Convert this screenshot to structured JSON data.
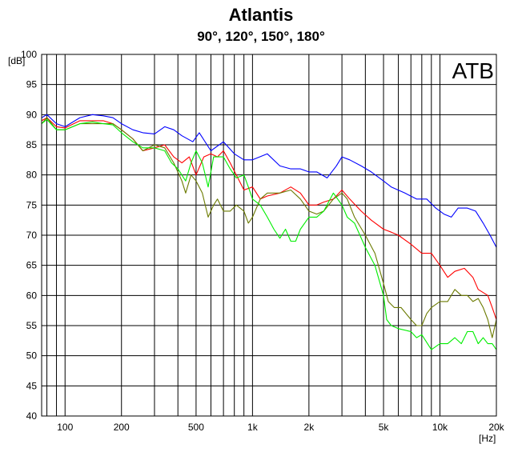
{
  "chart_data": {
    "type": "line",
    "title": "Atlantis",
    "subtitle": "90°, 120°, 150°, 180°",
    "ylabel": "[dB]",
    "xlabel": "[Hz]",
    "annotation": "ATB",
    "xscale": "log",
    "grid": true,
    "xlim": [
      75,
      20000
    ],
    "ylim": [
      40,
      100
    ],
    "x_tick_labels": [
      {
        "value": 100,
        "label": "100"
      },
      {
        "value": 200,
        "label": "200"
      },
      {
        "value": 500,
        "label": "500"
      },
      {
        "value": 1000,
        "label": "1k"
      },
      {
        "value": 2000,
        "label": "2k"
      },
      {
        "value": 5000,
        "label": "5k"
      },
      {
        "value": 10000,
        "label": "10k"
      },
      {
        "value": 20000,
        "label": "20k"
      }
    ],
    "y_ticks": [
      40,
      45,
      50,
      55,
      60,
      65,
      70,
      75,
      80,
      85,
      90,
      95,
      100
    ],
    "series": [
      {
        "color": "#0000ff",
        "points": [
          [
            75,
            89.5
          ],
          [
            80,
            90
          ],
          [
            90,
            88.5
          ],
          [
            100,
            88
          ],
          [
            120,
            89.5
          ],
          [
            140,
            90
          ],
          [
            160,
            89.8
          ],
          [
            180,
            89.5
          ],
          [
            200,
            88.5
          ],
          [
            230,
            87.5
          ],
          [
            260,
            87
          ],
          [
            300,
            86.8
          ],
          [
            340,
            88
          ],
          [
            380,
            87.5
          ],
          [
            420,
            86.5
          ],
          [
            480,
            85.5
          ],
          [
            520,
            87
          ],
          [
            600,
            84
          ],
          [
            700,
            85.5
          ],
          [
            800,
            83.5
          ],
          [
            900,
            82.5
          ],
          [
            1000,
            82.5
          ],
          [
            1200,
            83.5
          ],
          [
            1400,
            81.5
          ],
          [
            1600,
            81
          ],
          [
            1800,
            81
          ],
          [
            2000,
            80.5
          ],
          [
            2200,
            80.5
          ],
          [
            2500,
            79.5
          ],
          [
            2800,
            81.5
          ],
          [
            3000,
            83
          ],
          [
            3300,
            82.5
          ],
          [
            3800,
            81.5
          ],
          [
            4300,
            80.5
          ],
          [
            5000,
            79
          ],
          [
            5500,
            78
          ],
          [
            6500,
            77
          ],
          [
            7500,
            76
          ],
          [
            8500,
            76
          ],
          [
            9500,
            74.5
          ],
          [
            10500,
            73.5
          ],
          [
            11500,
            73
          ],
          [
            12500,
            74.5
          ],
          [
            14000,
            74.5
          ],
          [
            15500,
            74
          ],
          [
            17000,
            72
          ],
          [
            18500,
            70
          ],
          [
            20000,
            68
          ]
        ]
      },
      {
        "color": "#ff0000",
        "points": [
          [
            75,
            89
          ],
          [
            80,
            89.5
          ],
          [
            90,
            88
          ],
          [
            100,
            87.8
          ],
          [
            120,
            89
          ],
          [
            140,
            89
          ],
          [
            160,
            89
          ],
          [
            180,
            88.5
          ],
          [
            200,
            87.5
          ],
          [
            230,
            86
          ],
          [
            260,
            84
          ],
          [
            300,
            84.5
          ],
          [
            340,
            85
          ],
          [
            380,
            83
          ],
          [
            420,
            82
          ],
          [
            460,
            83
          ],
          [
            500,
            80
          ],
          [
            550,
            83
          ],
          [
            600,
            83.5
          ],
          [
            650,
            83
          ],
          [
            700,
            84
          ],
          [
            760,
            82
          ],
          [
            820,
            80
          ],
          [
            900,
            77.5
          ],
          [
            1000,
            78
          ],
          [
            1100,
            76
          ],
          [
            1200,
            76.5
          ],
          [
            1400,
            77
          ],
          [
            1600,
            78
          ],
          [
            1800,
            77
          ],
          [
            2000,
            75
          ],
          [
            2200,
            75
          ],
          [
            2400,
            75.5
          ],
          [
            2700,
            76
          ],
          [
            3000,
            77.5
          ],
          [
            3300,
            76
          ],
          [
            3800,
            74
          ],
          [
            4300,
            72.5
          ],
          [
            5000,
            71
          ],
          [
            5500,
            70.5
          ],
          [
            6000,
            70
          ],
          [
            7000,
            68.5
          ],
          [
            8000,
            67
          ],
          [
            9000,
            67
          ],
          [
            10000,
            65
          ],
          [
            11000,
            63
          ],
          [
            12000,
            64
          ],
          [
            13500,
            64.5
          ],
          [
            15000,
            63
          ],
          [
            16000,
            61
          ],
          [
            18000,
            60
          ],
          [
            19000,
            58
          ],
          [
            20000,
            56
          ]
        ]
      },
      {
        "color": "#6b7a00",
        "points": [
          [
            75,
            88.5
          ],
          [
            80,
            89.5
          ],
          [
            90,
            87.5
          ],
          [
            100,
            87.5
          ],
          [
            120,
            88.5
          ],
          [
            140,
            88.5
          ],
          [
            160,
            88.5
          ],
          [
            180,
            88.5
          ],
          [
            200,
            87.5
          ],
          [
            230,
            86
          ],
          [
            260,
            84
          ],
          [
            300,
            85
          ],
          [
            340,
            84.5
          ],
          [
            380,
            82
          ],
          [
            420,
            79
          ],
          [
            440,
            77
          ],
          [
            470,
            80
          ],
          [
            500,
            79
          ],
          [
            540,
            77
          ],
          [
            580,
            73
          ],
          [
            620,
            75
          ],
          [
            650,
            76
          ],
          [
            700,
            74
          ],
          [
            760,
            74
          ],
          [
            820,
            75
          ],
          [
            900,
            74
          ],
          [
            950,
            72
          ],
          [
            1000,
            73
          ],
          [
            1100,
            76
          ],
          [
            1200,
            77
          ],
          [
            1400,
            77
          ],
          [
            1600,
            77.5
          ],
          [
            1800,
            76
          ],
          [
            2000,
            74
          ],
          [
            2200,
            73.5
          ],
          [
            2400,
            74
          ],
          [
            2700,
            76
          ],
          [
            3000,
            77
          ],
          [
            3200,
            76
          ],
          [
            3500,
            73
          ],
          [
            4000,
            70
          ],
          [
            4500,
            67
          ],
          [
            5000,
            62
          ],
          [
            5300,
            59
          ],
          [
            5700,
            58
          ],
          [
            6200,
            58
          ],
          [
            7000,
            56
          ],
          [
            7500,
            55
          ],
          [
            8000,
            55
          ],
          [
            8500,
            57
          ],
          [
            9000,
            58
          ],
          [
            10000,
            59
          ],
          [
            11000,
            59
          ],
          [
            12000,
            61
          ],
          [
            13000,
            60
          ],
          [
            14000,
            60
          ],
          [
            15000,
            59
          ],
          [
            16000,
            59.5
          ],
          [
            17000,
            58
          ],
          [
            18000,
            56
          ],
          [
            19000,
            53
          ],
          [
            20000,
            56
          ]
        ]
      },
      {
        "color": "#00ee00",
        "points": [
          [
            75,
            88.5
          ],
          [
            80,
            89.2
          ],
          [
            90,
            87.5
          ],
          [
            100,
            87.5
          ],
          [
            120,
            88.5
          ],
          [
            140,
            88.8
          ],
          [
            160,
            88.5
          ],
          [
            180,
            88.3
          ],
          [
            200,
            87
          ],
          [
            230,
            85.5
          ],
          [
            260,
            84.5
          ],
          [
            300,
            84.5
          ],
          [
            340,
            84
          ],
          [
            370,
            82
          ],
          [
            400,
            81
          ],
          [
            440,
            79
          ],
          [
            470,
            82
          ],
          [
            500,
            84
          ],
          [
            540,
            82
          ],
          [
            580,
            78
          ],
          [
            620,
            83
          ],
          [
            650,
            83
          ],
          [
            700,
            83
          ],
          [
            760,
            81
          ],
          [
            820,
            79.5
          ],
          [
            900,
            80
          ],
          [
            950,
            78
          ],
          [
            1000,
            76
          ],
          [
            1100,
            75
          ],
          [
            1200,
            73
          ],
          [
            1300,
            71
          ],
          [
            1400,
            69.5
          ],
          [
            1500,
            71
          ],
          [
            1600,
            69
          ],
          [
            1700,
            69
          ],
          [
            1800,
            71
          ],
          [
            2000,
            73
          ],
          [
            2200,
            73
          ],
          [
            2400,
            74
          ],
          [
            2700,
            77
          ],
          [
            3000,
            75
          ],
          [
            3200,
            73
          ],
          [
            3500,
            72
          ],
          [
            4000,
            68
          ],
          [
            4500,
            65
          ],
          [
            5000,
            60
          ],
          [
            5200,
            56
          ],
          [
            5500,
            55
          ],
          [
            6000,
            54.5
          ],
          [
            7000,
            54
          ],
          [
            7500,
            53
          ],
          [
            8000,
            53.5
          ],
          [
            9000,
            51
          ],
          [
            10000,
            52
          ],
          [
            11000,
            52
          ],
          [
            12000,
            53
          ],
          [
            13000,
            52
          ],
          [
            14000,
            54
          ],
          [
            15000,
            54
          ],
          [
            16000,
            52
          ],
          [
            17000,
            53
          ],
          [
            18000,
            52
          ],
          [
            19000,
            52
          ],
          [
            20000,
            51
          ]
        ]
      }
    ]
  }
}
